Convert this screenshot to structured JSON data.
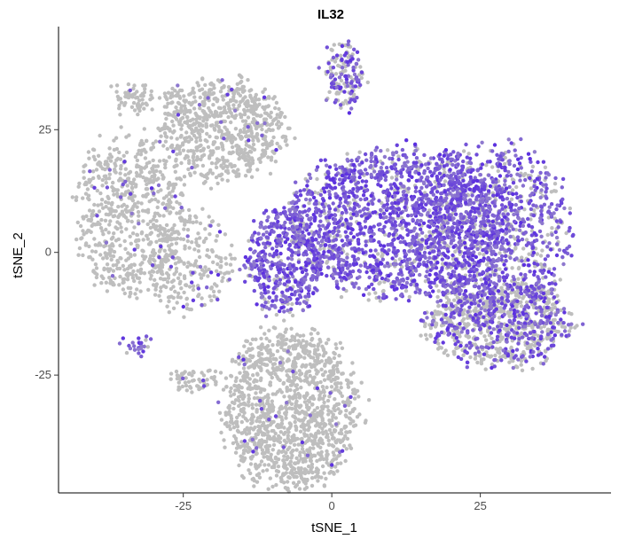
{
  "chart_data": {
    "type": "scatter",
    "title": "IL32",
    "xlabel": "tSNE_1",
    "ylabel": "tSNE_2",
    "xlim": [
      -46,
      47
    ],
    "ylim": [
      -49,
      46
    ],
    "x_ticks": [
      -25,
      0,
      25
    ],
    "y_ticks": [
      -25,
      0,
      25
    ],
    "x_tick_labels": [
      "-25",
      "0",
      "25"
    ],
    "y_tick_labels": [
      "-25",
      "0",
      "25"
    ],
    "grid": false,
    "legend": "none",
    "colors": {
      "low": "#bebebe",
      "high": "#5a2ee0"
    },
    "point_radius_px": 2.2,
    "clusters": [
      {
        "id": "top-left",
        "cx": -18,
        "cy": 25,
        "rx": 10,
        "ry": 10,
        "n": 700,
        "expr_frac": 0.03,
        "high_x": -5
      },
      {
        "id": "left",
        "cx": -34,
        "cy": 8,
        "rx": 9,
        "ry": 16,
        "n": 650,
        "expr_frac": 0.04,
        "high_x": -30
      },
      {
        "id": "left-tail",
        "cx": -24,
        "cy": -2,
        "rx": 7,
        "ry": 10,
        "n": 250,
        "expr_frac": 0.08,
        "high_x": -20
      },
      {
        "id": "tiny-topleft",
        "cx": -34,
        "cy": 31,
        "rx": 3,
        "ry": 3,
        "n": 60,
        "expr_frac": 0.05,
        "high_x": -34
      },
      {
        "id": "tiny-topleft2",
        "cx": -27,
        "cy": 32,
        "rx": 2,
        "ry": 2,
        "n": 25,
        "expr_frac": 0.05,
        "high_x": -27
      },
      {
        "id": "top-streak",
        "cx": 2,
        "cy": 36,
        "rx": 3,
        "ry": 7,
        "n": 160,
        "expr_frac": 0.55,
        "high_x": 2
      },
      {
        "id": "main-upper",
        "cx": 12,
        "cy": 6,
        "rx": 19,
        "ry": 15,
        "n": 1900,
        "expr_frac": 0.82,
        "high_x": 10
      },
      {
        "id": "main-right",
        "cx": 28,
        "cy": 4,
        "rx": 12,
        "ry": 18,
        "n": 900,
        "expr_frac": 0.72,
        "high_x": 26
      },
      {
        "id": "main-lowerright",
        "cx": 28,
        "cy": -14,
        "rx": 12,
        "ry": 9,
        "n": 900,
        "expr_frac": 0.35,
        "high_x": 28
      },
      {
        "id": "main-left",
        "cx": -8,
        "cy": -2,
        "rx": 6,
        "ry": 11,
        "n": 500,
        "expr_frac": 0.85,
        "high_x": -8
      },
      {
        "id": "bottom",
        "cx": -7,
        "cy": -32,
        "rx": 11,
        "ry": 16,
        "n": 1300,
        "expr_frac": 0.02,
        "high_x": -7
      },
      {
        "id": "bottom-arm",
        "cx": -23,
        "cy": -26,
        "rx": 4,
        "ry": 2,
        "n": 60,
        "expr_frac": 0.02,
        "high_x": -23
      },
      {
        "id": "small-purple",
        "cx": -33,
        "cy": -19,
        "rx": 2,
        "ry": 1.2,
        "n": 25,
        "expr_frac": 0.9,
        "high_x": -33
      }
    ]
  }
}
